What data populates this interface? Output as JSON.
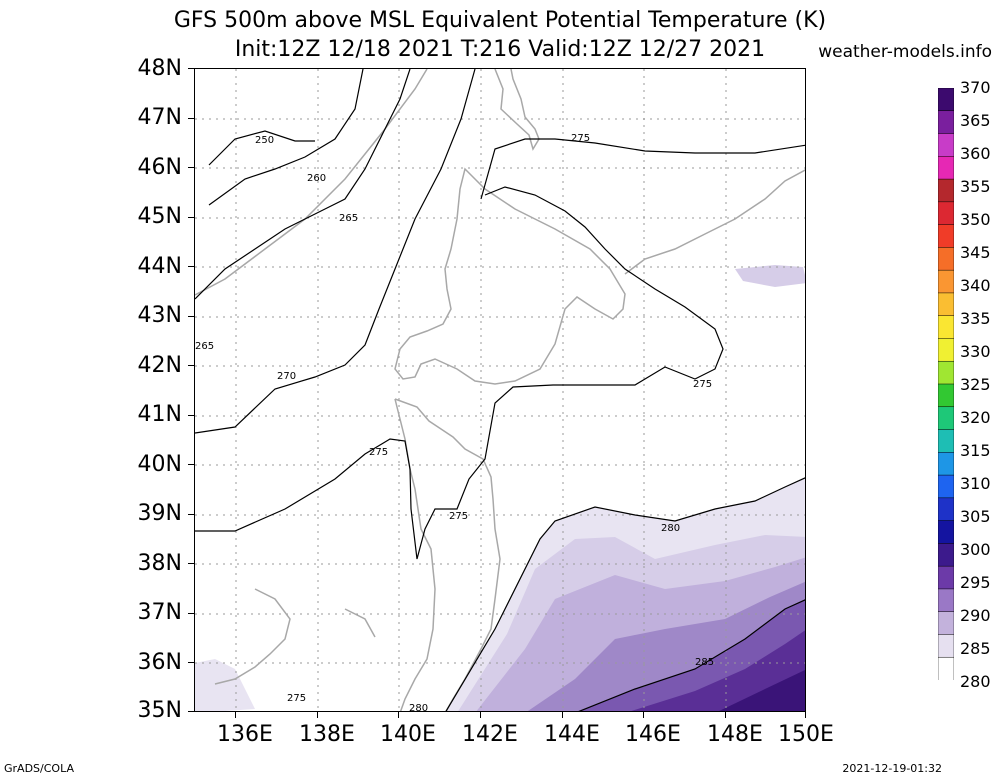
{
  "title_line1": "GFS 500m above MSL Equivalent Potential Temperature (K)",
  "title_line2": "Init:12Z 12/18 2021 T:216 Valid:12Z 12/27 2021",
  "brand": "weather-models.info",
  "footer_left": "GrADS/COLA",
  "footer_right": "2021-12-19-01:32",
  "axes": {
    "lat_labels": [
      "48N",
      "47N",
      "46N",
      "45N",
      "44N",
      "43N",
      "42N",
      "41N",
      "40N",
      "39N",
      "38N",
      "37N",
      "36N",
      "35N"
    ],
    "lon_labels": [
      "136E",
      "138E",
      "140E",
      "142E",
      "144E",
      "146E",
      "148E",
      "150E"
    ],
    "lat_range": [
      35,
      48
    ],
    "lon_range": [
      135,
      150
    ]
  },
  "colorbar": {
    "labels": [
      "370",
      "365",
      "360",
      "355",
      "350",
      "345",
      "340",
      "335",
      "330",
      "325",
      "320",
      "315",
      "310",
      "305",
      "300",
      "295",
      "290",
      "285",
      "280"
    ],
    "colors": [
      "#3c0a6e",
      "#7a1f9e",
      "#c83cc8",
      "#e628b4",
      "#b4282d",
      "#dc2832",
      "#f03c28",
      "#f56e28",
      "#fa9632",
      "#fabe32",
      "#fae632",
      "#f0f032",
      "#a0e632",
      "#32c832",
      "#1ec878",
      "#1ebeb4",
      "#1e96e6",
      "#1e64f0",
      "#1e32c8",
      "#1414a0",
      "#3c1a8c",
      "#6c3aa8",
      "#9a78c6",
      "#c3b2dc",
      "#e6e0f0",
      "#ffffff"
    ]
  },
  "contour_labels": [
    "250",
    "260",
    "265",
    "265",
    "270",
    "275",
    "275",
    "275",
    "275",
    "275",
    "280",
    "280",
    "285"
  ],
  "shading_colors": {
    "lightest": "#e8e4f2",
    "light": "#d6cde8",
    "mid": "#c0b0dc",
    "medium_dark": "#9f88c8",
    "dark": "#7a58b0",
    "darker": "#5a2f96",
    "darkest": "#3a1478"
  }
}
